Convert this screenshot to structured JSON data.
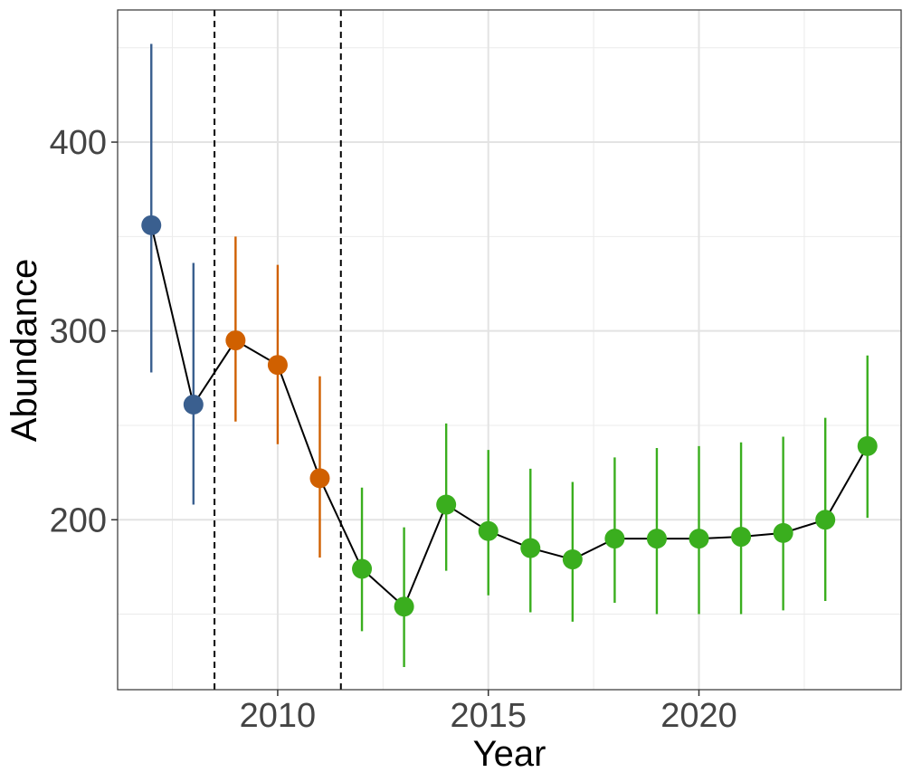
{
  "chart_data": {
    "type": "line",
    "xlabel": "Year",
    "ylabel": "Abundance",
    "xlim": [
      2006.2,
      2024.8
    ],
    "ylim": [
      110,
      470
    ],
    "x_ticks": [
      2010,
      2015,
      2020
    ],
    "y_ticks": [
      200,
      300,
      400
    ],
    "grid": true,
    "legend": "none",
    "reference_lines": [
      2008.5,
      2011.5
    ],
    "colors": {
      "blue": "#3a5f8f",
      "orange": "#d06000",
      "green": "#3aae1e",
      "line": "#000000"
    },
    "points": [
      {
        "x": 2007,
        "y": 356,
        "lower": 278,
        "upper": 452,
        "color": "blue"
      },
      {
        "x": 2008,
        "y": 261,
        "lower": 208,
        "upper": 336,
        "color": "blue"
      },
      {
        "x": 2009,
        "y": 295,
        "lower": 252,
        "upper": 350,
        "color": "orange"
      },
      {
        "x": 2010,
        "y": 282,
        "lower": 240,
        "upper": 335,
        "color": "orange"
      },
      {
        "x": 2011,
        "y": 222,
        "lower": 180,
        "upper": 276,
        "color": "orange"
      },
      {
        "x": 2012,
        "y": 174,
        "lower": 141,
        "upper": 217,
        "color": "green"
      },
      {
        "x": 2013,
        "y": 154,
        "lower": 122,
        "upper": 196,
        "color": "green"
      },
      {
        "x": 2014,
        "y": 208,
        "lower": 173,
        "upper": 251,
        "color": "green"
      },
      {
        "x": 2015,
        "y": 194,
        "lower": 160,
        "upper": 237,
        "color": "green"
      },
      {
        "x": 2016,
        "y": 185,
        "lower": 151,
        "upper": 227,
        "color": "green"
      },
      {
        "x": 2017,
        "y": 179,
        "lower": 146,
        "upper": 220,
        "color": "green"
      },
      {
        "x": 2018,
        "y": 190,
        "lower": 156,
        "upper": 233,
        "color": "green"
      },
      {
        "x": 2019,
        "y": 190,
        "lower": 150,
        "upper": 238,
        "color": "green"
      },
      {
        "x": 2020,
        "y": 190,
        "lower": 150,
        "upper": 239,
        "color": "green"
      },
      {
        "x": 2021,
        "y": 191,
        "lower": 150,
        "upper": 241,
        "color": "green"
      },
      {
        "x": 2022,
        "y": 193,
        "lower": 152,
        "upper": 244,
        "color": "green"
      },
      {
        "x": 2023,
        "y": 200,
        "lower": 157,
        "upper": 254,
        "color": "green"
      },
      {
        "x": 2024,
        "y": 239,
        "lower": 201,
        "upper": 287,
        "color": "green"
      }
    ]
  }
}
